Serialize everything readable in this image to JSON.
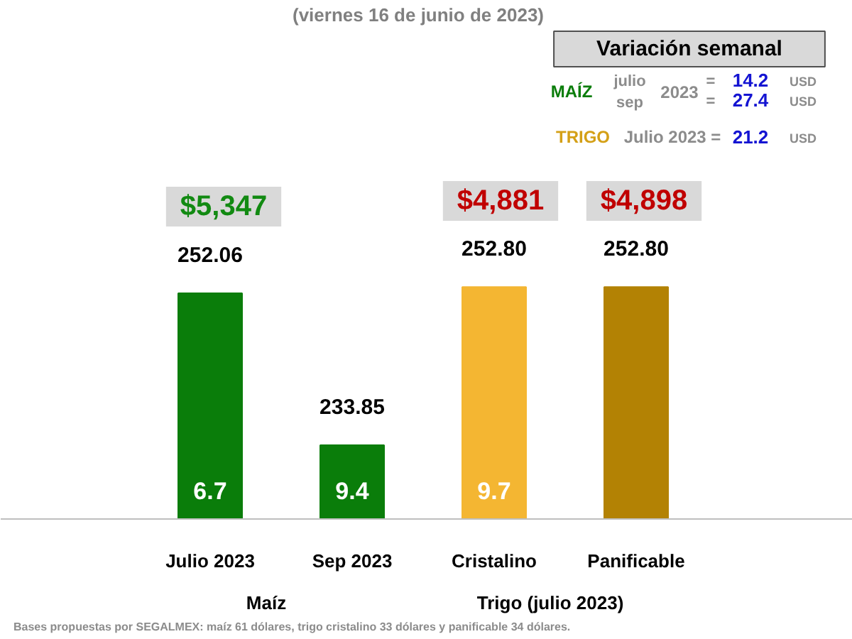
{
  "chart_data": {
    "type": "bar",
    "subtitle": "(viernes 16 de junio de 2023)",
    "categories": [
      "Julio 2023",
      "Sep 2023",
      "Cristalino",
      "Panificable"
    ],
    "values": [
      252.06,
      233.85,
      252.8,
      252.8
    ],
    "colors": [
      "#0a7d0a",
      "#0a7d0a",
      "#f4b632",
      "#b38204"
    ],
    "value_labels": [
      "252.06",
      "233.85",
      "252.80",
      "252.80"
    ],
    "ylim": [
      225,
      265
    ],
    "tick_labels": "x",
    "annotations": [
      "Variación semanal",
      "MAÍZ",
      "julio",
      "sep",
      "2023",
      "=",
      "=",
      "14.2",
      "27.4",
      "USD",
      "USD",
      "TRIGO",
      "Julio 2023 =",
      "21.2",
      "USD",
      "Maíz",
      "Trigo (julio 2023)",
      "Bases propuestas por SEGALMEX: maíz 61 dólares, trigo cristalino 33 dólares y panificable 34 dólares.",
      "$5,347",
      "$4,881",
      "$4,898",
      "6.7",
      "9.4",
      "9.7"
    ]
  }
}
